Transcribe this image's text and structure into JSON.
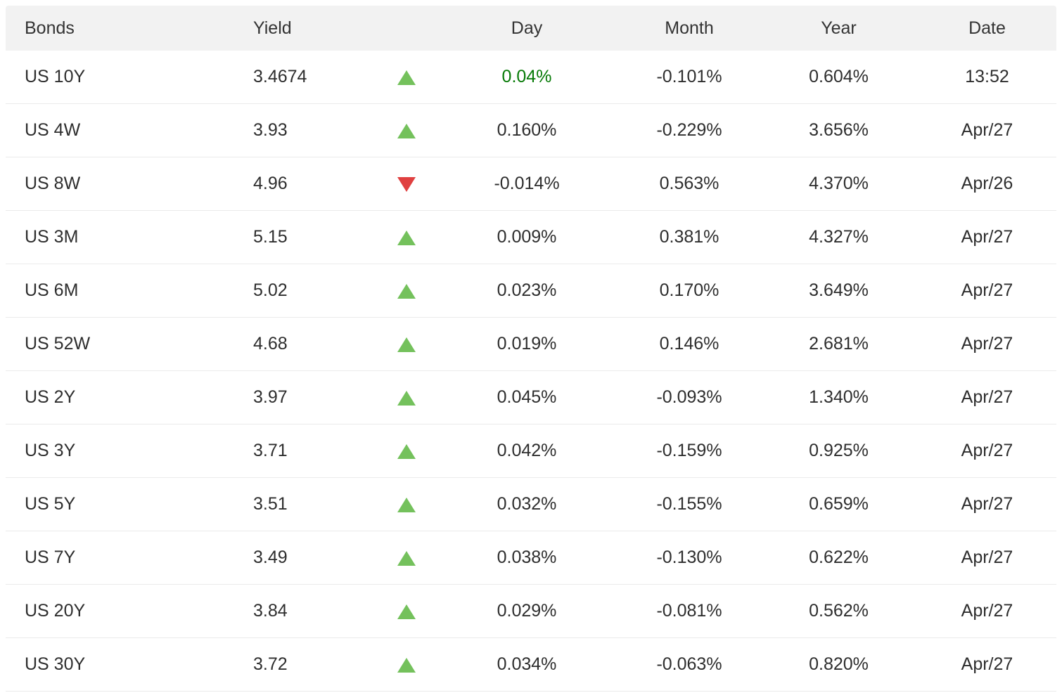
{
  "colors": {
    "header_bg": "#f2f2f2",
    "positive_text": "#067a06",
    "up_arrow": "#74c15c",
    "down_arrow": "#e04040"
  },
  "chart_data": {
    "type": "table",
    "columns": [
      "Bonds",
      "Yield",
      "Day",
      "Month",
      "Year",
      "Date"
    ],
    "rows": [
      {
        "bond": "US 10Y",
        "yield": "3.4674",
        "direction": "up",
        "day": "0.04%",
        "day_tone": "green",
        "month": "-0.101%",
        "year": "0.604%",
        "date": "13:52"
      },
      {
        "bond": "US 4W",
        "yield": "3.93",
        "direction": "up",
        "day": "0.160%",
        "month": "-0.229%",
        "year": "3.656%",
        "date": "Apr/27"
      },
      {
        "bond": "US 8W",
        "yield": "4.96",
        "direction": "down",
        "day": "-0.014%",
        "month": "0.563%",
        "year": "4.370%",
        "date": "Apr/26"
      },
      {
        "bond": "US 3M",
        "yield": "5.15",
        "direction": "up",
        "day": "0.009%",
        "month": "0.381%",
        "year": "4.327%",
        "date": "Apr/27"
      },
      {
        "bond": "US 6M",
        "yield": "5.02",
        "direction": "up",
        "day": "0.023%",
        "month": "0.170%",
        "year": "3.649%",
        "date": "Apr/27"
      },
      {
        "bond": "US 52W",
        "yield": "4.68",
        "direction": "up",
        "day": "0.019%",
        "month": "0.146%",
        "year": "2.681%",
        "date": "Apr/27"
      },
      {
        "bond": "US 2Y",
        "yield": "3.97",
        "direction": "up",
        "day": "0.045%",
        "month": "-0.093%",
        "year": "1.340%",
        "date": "Apr/27"
      },
      {
        "bond": "US 3Y",
        "yield": "3.71",
        "direction": "up",
        "day": "0.042%",
        "month": "-0.159%",
        "year": "0.925%",
        "date": "Apr/27"
      },
      {
        "bond": "US 5Y",
        "yield": "3.51",
        "direction": "up",
        "day": "0.032%",
        "month": "-0.155%",
        "year": "0.659%",
        "date": "Apr/27"
      },
      {
        "bond": "US 7Y",
        "yield": "3.49",
        "direction": "up",
        "day": "0.038%",
        "month": "-0.130%",
        "year": "0.622%",
        "date": "Apr/27"
      },
      {
        "bond": "US 20Y",
        "yield": "3.84",
        "direction": "up",
        "day": "0.029%",
        "month": "-0.081%",
        "year": "0.562%",
        "date": "Apr/27"
      },
      {
        "bond": "US 30Y",
        "yield": "3.72",
        "direction": "up",
        "day": "0.034%",
        "month": "-0.063%",
        "year": "0.820%",
        "date": "Apr/27"
      }
    ]
  }
}
